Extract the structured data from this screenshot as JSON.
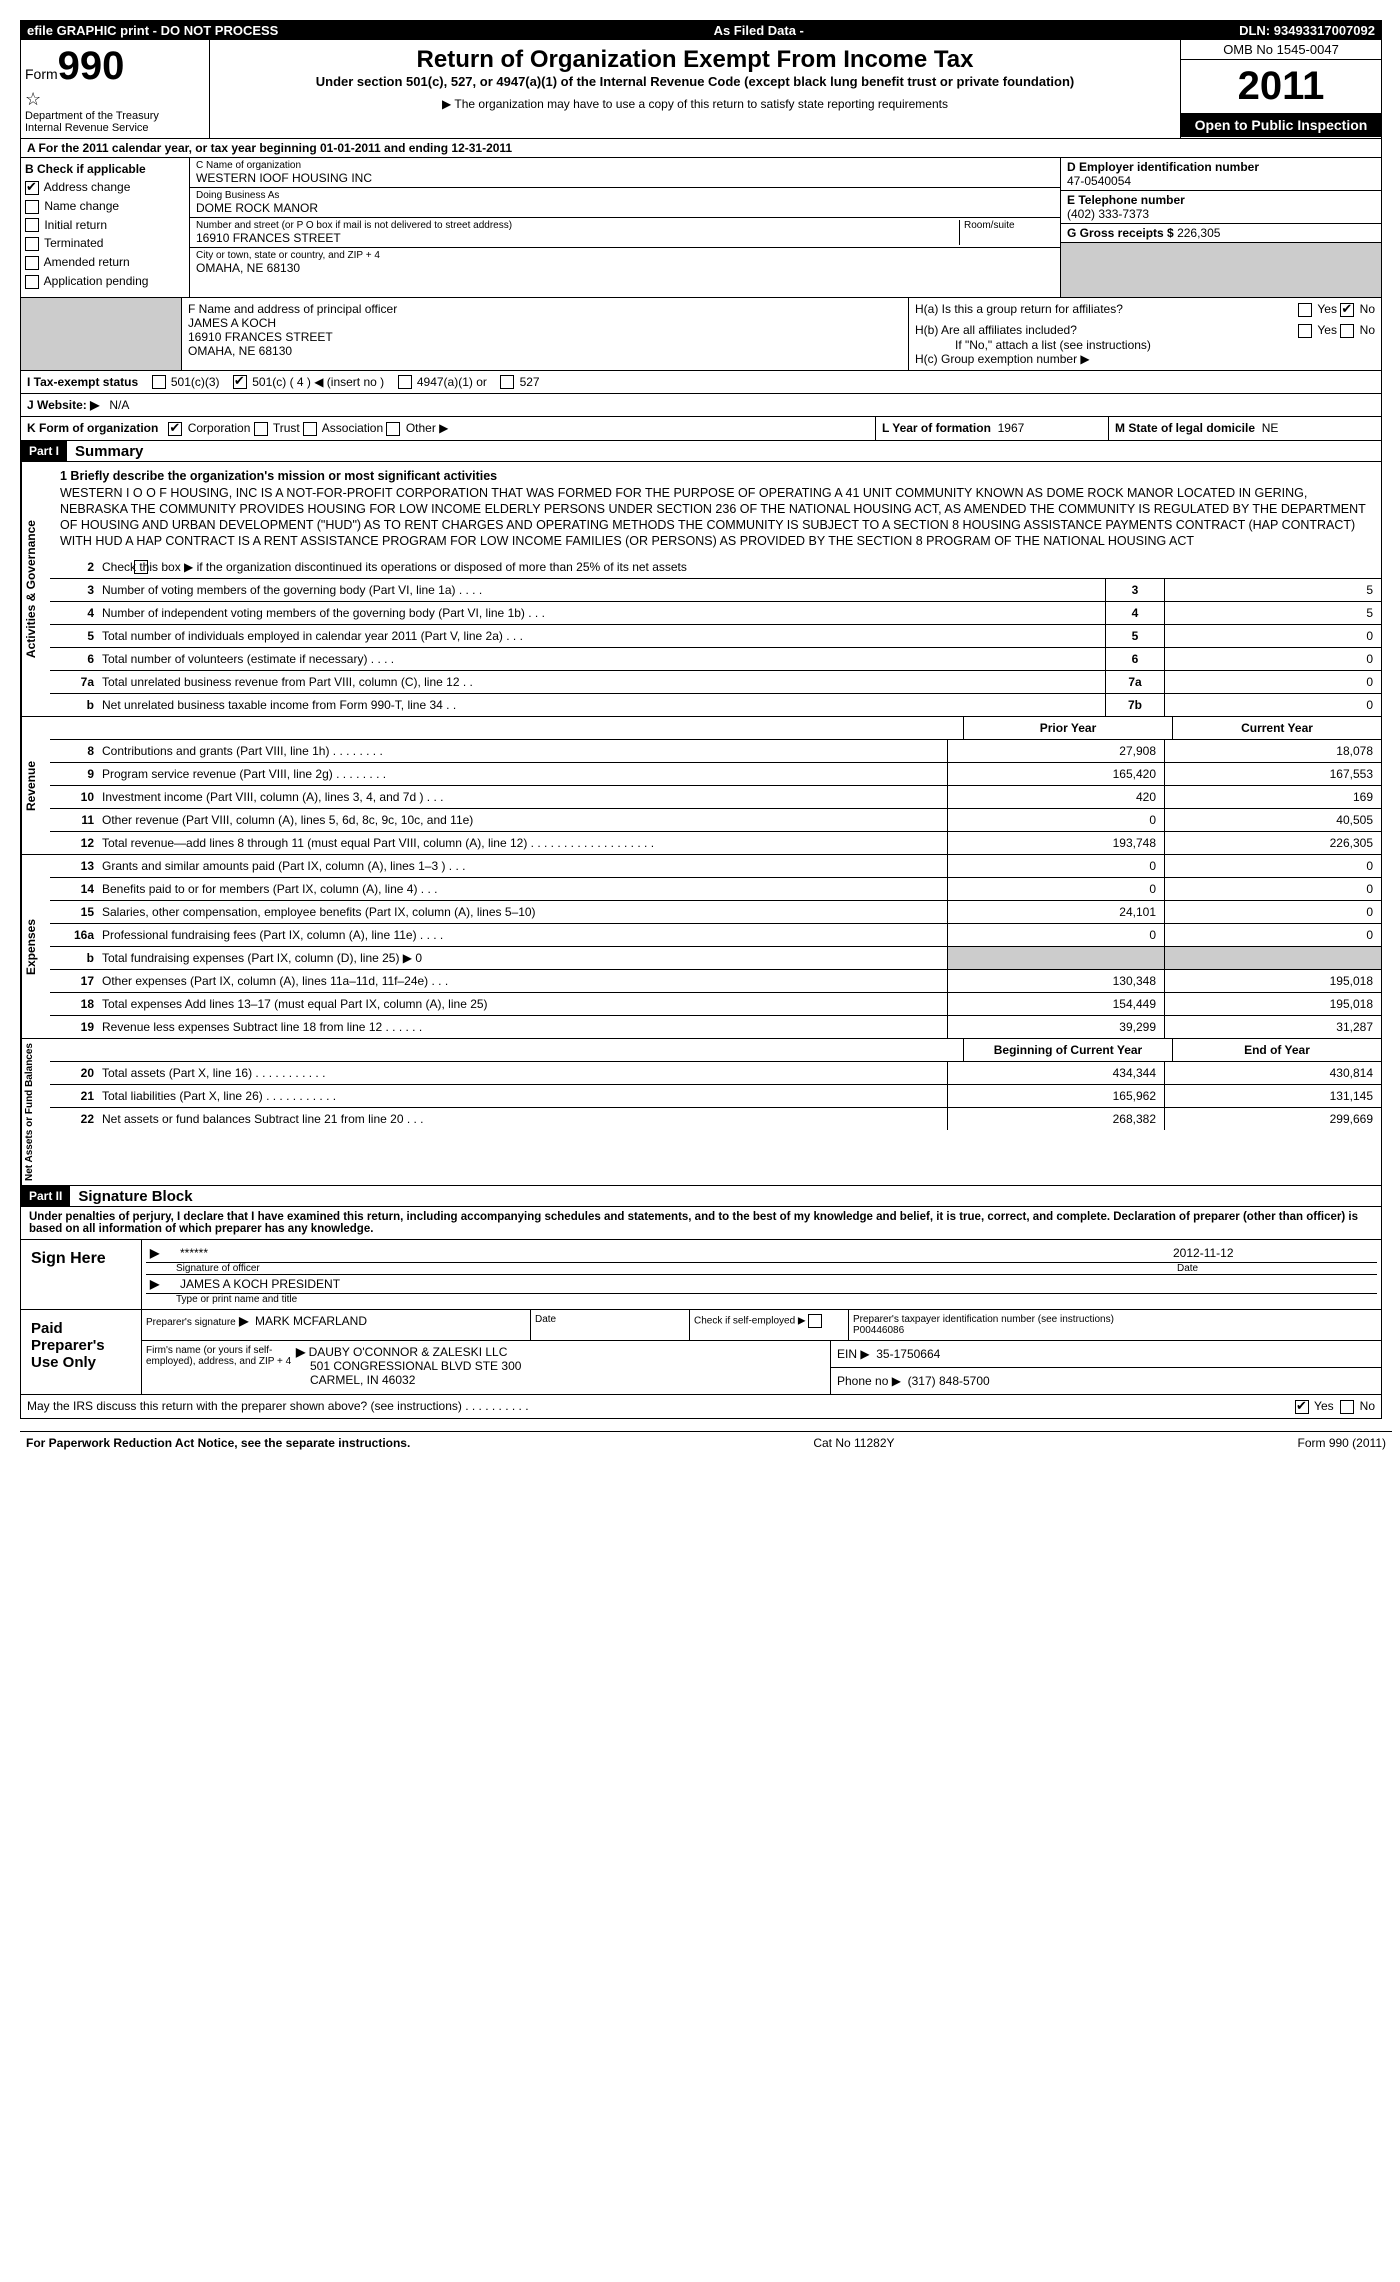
{
  "top_bar": {
    "left": "efile GRAPHIC print - DO NOT PROCESS",
    "mid": "As Filed Data -",
    "right": "DLN: 93493317007092"
  },
  "header": {
    "form_label": "Form",
    "form_number": "990",
    "dept1": "Department of the Treasury",
    "dept2": "Internal Revenue Service",
    "title": "Return of Organization Exempt From Income Tax",
    "subtitle": "Under section 501(c), 527, or 4947(a)(1) of the Internal Revenue Code (except black lung benefit trust or private foundation)",
    "note": "▶ The organization may have to use a copy of this return to satisfy state reporting requirements",
    "omb": "OMB No 1545-0047",
    "year": "2011",
    "open_public": "Open to Public Inspection"
  },
  "section_a": "A  For the 2011 calendar year, or tax year beginning 01-01-2011    and ending 12-31-2011",
  "section_b": {
    "label": "B  Check if applicable",
    "items": [
      {
        "label": "Address change",
        "checked": true
      },
      {
        "label": "Name change",
        "checked": false
      },
      {
        "label": "Initial return",
        "checked": false
      },
      {
        "label": "Terminated",
        "checked": false
      },
      {
        "label": "Amended return",
        "checked": false
      },
      {
        "label": "Application pending",
        "checked": false
      }
    ]
  },
  "section_c": {
    "name_label": "C Name of organization",
    "name": "WESTERN IOOF HOUSING INC",
    "dba_label": "Doing Business As",
    "dba": "DOME ROCK MANOR",
    "street_label": "Number and street (or P O  box if mail is not delivered to street address)",
    "room_label": "Room/suite",
    "street": "16910 FRANCES STREET",
    "city_label": "City or town, state or country, and ZIP + 4",
    "city": "OMAHA, NE  68130"
  },
  "section_d": {
    "label": "D Employer identification number",
    "value": "47-0540054"
  },
  "section_e": {
    "label": "E Telephone number",
    "value": "(402) 333-7373"
  },
  "section_g": {
    "label": "G Gross receipts $",
    "value": "226,305"
  },
  "section_f": {
    "label": "F  Name and address of principal officer",
    "name": "JAMES A KOCH",
    "street": "16910 FRANCES STREET",
    "city": "OMAHA, NE  68130"
  },
  "section_h": {
    "a_label": "H(a)  Is this a group return for affiliates?",
    "a_yes": false,
    "a_no": true,
    "b_label": "H(b)  Are all affiliates included?",
    "b_note": "If \"No,\" attach a list  (see instructions)",
    "c_label": "H(c)   Group exemption number ▶"
  },
  "section_i": {
    "label": "I   Tax-exempt status",
    "opts": [
      "501(c)(3)",
      "501(c) ( 4 ) ◀ (insert no )",
      "4947(a)(1) or",
      "527"
    ],
    "checked_idx": 1
  },
  "section_j": {
    "label": "J  Website: ▶",
    "value": "N/A"
  },
  "section_k": {
    "label": "K Form of organization",
    "opts": [
      {
        "l": "Corporation",
        "c": true
      },
      {
        "l": "Trust",
        "c": false
      },
      {
        "l": "Association",
        "c": false
      },
      {
        "l": "Other ▶",
        "c": false
      }
    ]
  },
  "section_l": {
    "label": "L Year of formation",
    "value": "1967"
  },
  "section_m": {
    "label": "M State of legal domicile",
    "value": "NE"
  },
  "part1": {
    "header": "Part I",
    "title": "Summary",
    "mission_label": "1   Briefly describe the organization's mission or most significant activities",
    "mission": "WESTERN I O O F HOUSING, INC  IS A NOT-FOR-PROFIT CORPORATION THAT WAS FORMED FOR THE PURPOSE OF OPERATING A 41 UNIT COMMUNITY KNOWN AS DOME ROCK MANOR LOCATED IN GERING, NEBRASKA  THE COMMUNITY PROVIDES HOUSING FOR LOW INCOME ELDERLY PERSONS UNDER SECTION 236 OF THE NATIONAL HOUSING ACT, AS AMENDED  THE COMMUNITY IS REGULATED BY THE DEPARTMENT OF HOUSING AND URBAN DEVELOPMENT (\"HUD\") AS TO RENT CHARGES AND OPERATING METHODS  THE COMMUNITY IS SUBJECT TO A SECTION 8 HOUSING ASSISTANCE PAYMENTS CONTRACT (HAP CONTRACT) WITH HUD  A HAP CONTRACT IS A RENT ASSISTANCE PROGRAM FOR LOW INCOME FAMILIES (OR PERSONS) AS PROVIDED BY THE SECTION 8 PROGRAM OF THE NATIONAL HOUSING ACT",
    "line2": "Check this box ▶      if the organization discontinued its operations or disposed of more than 25% of its net assets",
    "gov_lines": [
      {
        "n": "3",
        "d": "Number of voting members of the governing body (Part VI, line 1a)   .    .    .    .",
        "b": "3",
        "v": "5"
      },
      {
        "n": "4",
        "d": "Number of independent voting members of the governing body (Part VI, line 1b)   .    .    .",
        "b": "4",
        "v": "5"
      },
      {
        "n": "5",
        "d": "Total number of individuals employed in calendar year 2011 (Part V, line 2a)   .    .    .",
        "b": "5",
        "v": "0"
      },
      {
        "n": "6",
        "d": "Total number of volunteers (estimate if necessary)   .    .    .    .",
        "b": "6",
        "v": "0"
      },
      {
        "n": "7a",
        "d": "Total unrelated business revenue from Part VIII, column (C), line 12   .    .",
        "b": "7a",
        "v": "0"
      },
      {
        "n": "b",
        "d": "Net unrelated business taxable income from Form 990-T, line 34   .    .",
        "b": "7b",
        "v": "0"
      }
    ],
    "col_headers": {
      "prior": "Prior Year",
      "current": "Current Year"
    },
    "revenue_lines": [
      {
        "n": "8",
        "d": "Contributions and grants (Part VIII, line 1h)   .    .    .    .    .    .    .    .",
        "p": "27,908",
        "c": "18,078"
      },
      {
        "n": "9",
        "d": "Program service revenue (Part VIII, line 2g)   .    .    .    .    .    .    .    .",
        "p": "165,420",
        "c": "167,553"
      },
      {
        "n": "10",
        "d": "Investment income (Part VIII, column (A), lines 3, 4, and 7d )   .    .    .",
        "p": "420",
        "c": "169"
      },
      {
        "n": "11",
        "d": "Other revenue (Part VIII, column (A), lines 5, 6d, 8c, 9c, 10c, and 11e)",
        "p": "0",
        "c": "40,505"
      },
      {
        "n": "12",
        "d": "Total revenue—add lines 8 through 11 (must equal Part VIII, column (A), line 12) .  .  .  .  .  .  .  .  .  .  .  .  .  .  .  .  .  .  .",
        "p": "193,748",
        "c": "226,305"
      }
    ],
    "expense_lines": [
      {
        "n": "13",
        "d": "Grants and similar amounts paid (Part IX, column (A), lines 1–3 )   .    .    .",
        "p": "0",
        "c": "0"
      },
      {
        "n": "14",
        "d": "Benefits paid to or for members (Part IX, column (A), line 4)   .    .    .",
        "p": "0",
        "c": "0"
      },
      {
        "n": "15",
        "d": "Salaries, other compensation, employee benefits (Part IX, column (A), lines 5–10)",
        "p": "24,101",
        "c": "0"
      },
      {
        "n": "16a",
        "d": "Professional fundraising fees (Part IX, column (A), line 11e)   .    .    .    .",
        "p": "0",
        "c": "0"
      },
      {
        "n": "b",
        "d": "Total fundraising expenses (Part IX, column (D), line 25) ▶ 0",
        "p": "",
        "c": "",
        "gray": true
      },
      {
        "n": "17",
        "d": "Other expenses (Part IX, column (A), lines 11a–11d, 11f–24e)   .    .    .",
        "p": "130,348",
        "c": "195,018"
      },
      {
        "n": "18",
        "d": "Total expenses  Add lines 13–17 (must equal Part IX, column (A), line 25)",
        "p": "154,449",
        "c": "195,018"
      },
      {
        "n": "19",
        "d": "Revenue less expenses  Subtract line 18 from line 12 .   .    .    .    .    .",
        "p": "39,299",
        "c": "31,287"
      }
    ],
    "balance_headers": {
      "begin": "Beginning of Current Year",
      "end": "End of Year"
    },
    "balance_lines": [
      {
        "n": "20",
        "d": "Total assets (Part X, line 16)   .    .    .    .    .    .    .    .    .    .    .",
        "p": "434,344",
        "c": "430,814"
      },
      {
        "n": "21",
        "d": "Total liabilities (Part X, line 26)   .    .    .    .    .    .    .    .    .    .    .",
        "p": "165,962",
        "c": "131,145"
      },
      {
        "n": "22",
        "d": "Net assets or fund balances  Subtract line 21 from line 20   .    .    .",
        "p": "268,382",
        "c": "299,669"
      }
    ]
  },
  "part2": {
    "header": "Part II",
    "title": "Signature Block",
    "perjury": "Under penalties of perjury, I declare that I have examined this return, including accompanying schedules and statements, and to the best of my knowledge and belief, it is true, correct, and complete. Declaration of preparer (other than officer) is based on all information of which preparer has any knowledge.",
    "sign_here": "Sign Here",
    "sig_stars": "******",
    "sig_date": "2012-11-12",
    "sig_officer_label": "Signature of officer",
    "date_label": "Date",
    "officer_name": "JAMES A KOCH PRESIDENT",
    "officer_type_label": "Type or print name and title",
    "paid_label": "Paid Preparer's Use Only",
    "preparer_sig_label": "Preparer's signature",
    "preparer_name": "MARK MCFARLAND",
    "date_col": "Date",
    "self_emp_label": "Check if self-employed ▶",
    "ptin_label": "Preparer's taxpayer identification number (see instructions)",
    "ptin": "P00446086",
    "firm_label": "Firm's name (or yours if self-employed), address, and ZIP + 4",
    "firm_name": "DAUBY O'CONNOR & ZALESKI LLC",
    "firm_addr1": "501 CONGRESSIONAL BLVD STE 300",
    "firm_addr2": "CARMEL, IN  46032",
    "ein_label": "EIN ▶",
    "ein": "35-1750664",
    "phone_label": "Phone no  ▶",
    "phone": "(317) 848-5700",
    "discuss": "May the IRS discuss this return with the preparer shown above? (see instructions)   .    .    .    .    .    .    .    .    .    .",
    "discuss_yes": true
  },
  "footer": {
    "left": "For Paperwork Reduction Act Notice, see the separate instructions.",
    "mid": "Cat No  11282Y",
    "right": "Form 990 (2011)"
  },
  "vlabels": {
    "gov": "Activities & Governance",
    "rev": "Revenue",
    "exp": "Expenses",
    "bal": "Net Assets or Fund Balances"
  }
}
